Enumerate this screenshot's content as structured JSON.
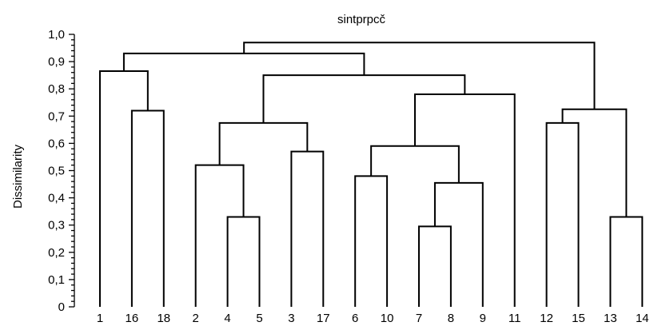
{
  "chart_data": {
    "type": "dendrogram",
    "title": "sintprpcč",
    "ylabel": "Dissimilarity",
    "xlabel": "",
    "ylim": [
      0,
      1.0
    ],
    "y_ticks": [
      "0",
      "0,1",
      "0,2",
      "0,3",
      "0,4",
      "0,5",
      "0,6",
      "0,7",
      "0,8",
      "0,9",
      "1,0"
    ],
    "leaf_order": [
      "1",
      "16",
      "18",
      "2",
      "4",
      "5",
      "3",
      "17",
      "6",
      "10",
      "7",
      "8",
      "9",
      "11",
      "12",
      "15",
      "13",
      "14"
    ],
    "merges": [
      {
        "left": "7",
        "right": "8",
        "height": 0.295
      },
      {
        "left": "13",
        "right": "14",
        "height": 0.33
      },
      {
        "left": "4",
        "right": "5",
        "height": 0.33
      },
      {
        "left": "7+8",
        "right": "9",
        "height": 0.455
      },
      {
        "left": "6",
        "right": "10",
        "height": 0.48
      },
      {
        "left": "2",
        "right": "4+5",
        "height": 0.52
      },
      {
        "left": "3",
        "right": "17",
        "height": 0.57
      },
      {
        "left": "6+10",
        "right": "7+8+9",
        "height": 0.59
      },
      {
        "left": "12",
        "right": "15",
        "height": 0.675
      },
      {
        "left": "2+4+5",
        "right": "3+17",
        "height": 0.675
      },
      {
        "left": "16",
        "right": "18",
        "height": 0.72
      },
      {
        "left": "12+15",
        "right": "13+14",
        "height": 0.725
      },
      {
        "left": "6+10+7+8+9",
        "right": "11",
        "height": 0.78
      },
      {
        "left": "2+4+5+3+17",
        "right": "6+10+7+8+9+11",
        "height": 0.85
      },
      {
        "left": "1",
        "right": "16+18",
        "height": 0.865
      },
      {
        "left": "1+16+18",
        "right": "2+4+5+3+17+6+10+7+8+9+11",
        "height": 0.93
      },
      {
        "left": "1+16+18+2+4+5+3+17+6+10+7+8+9+11",
        "right": "12+15+13+14",
        "height": 0.97
      }
    ]
  }
}
